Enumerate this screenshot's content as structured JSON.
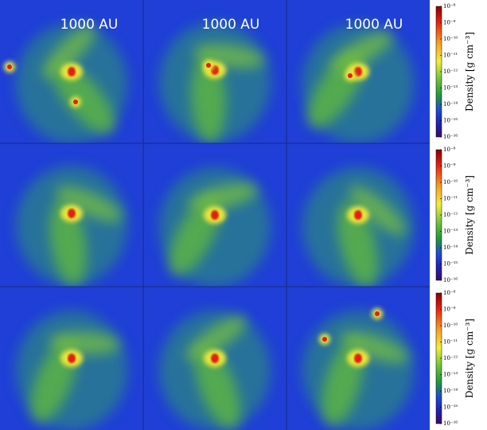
{
  "scale_labels": [
    "1000 AU",
    "1000 AU",
    "1000 AU"
  ],
  "colorbars": [
    {
      "label": "Density [g cm⁻³]",
      "lim": [
        -16,
        -8
      ],
      "ticks": [
        {
          "value": -8,
          "label": "10⁻⁸"
        },
        {
          "value": -9,
          "label": "10⁻⁹"
        },
        {
          "value": -10,
          "label": "10⁻¹⁰"
        },
        {
          "value": -11,
          "label": "10⁻¹¹"
        },
        {
          "value": -12,
          "label": "10⁻¹²"
        },
        {
          "value": -13,
          "label": "10⁻¹³"
        },
        {
          "value": -14,
          "label": "10⁻¹⁴"
        },
        {
          "value": -15,
          "label": "10⁻¹⁵"
        },
        {
          "value": -16,
          "label": "10⁻¹⁶"
        }
      ]
    },
    {
      "label": "Density [g cm⁻³]",
      "lim": [
        -16,
        -8
      ],
      "ticks": [
        {
          "value": -8,
          "label": "10⁻⁸"
        },
        {
          "value": -9,
          "label": "10⁻⁹"
        },
        {
          "value": -10,
          "label": "10⁻¹⁰"
        },
        {
          "value": -11,
          "label": "10⁻¹¹"
        },
        {
          "value": -12,
          "label": "10⁻¹²"
        },
        {
          "value": -13,
          "label": "10⁻¹³"
        },
        {
          "value": -14,
          "label": "10⁻¹⁴"
        },
        {
          "value": -15,
          "label": "10⁻¹⁵"
        },
        {
          "value": -16,
          "label": "10⁻¹⁶"
        }
      ]
    },
    {
      "label": "Density [g cm⁻³]",
      "lim": [
        -16,
        -8
      ],
      "ticks": [
        {
          "value": -8,
          "label": "10⁻⁸"
        },
        {
          "value": -9,
          "label": "10⁻⁹"
        },
        {
          "value": -10,
          "label": "10⁻¹⁰"
        },
        {
          "value": -11,
          "label": "10⁻¹¹"
        },
        {
          "value": -12,
          "label": "10⁻¹²"
        },
        {
          "value": -13,
          "label": "10⁻¹³"
        },
        {
          "value": -14,
          "label": "10⁻¹⁴"
        },
        {
          "value": -15,
          "label": "10⁻¹⁵"
        },
        {
          "value": -16,
          "label": "10⁻¹⁶"
        }
      ]
    }
  ]
}
